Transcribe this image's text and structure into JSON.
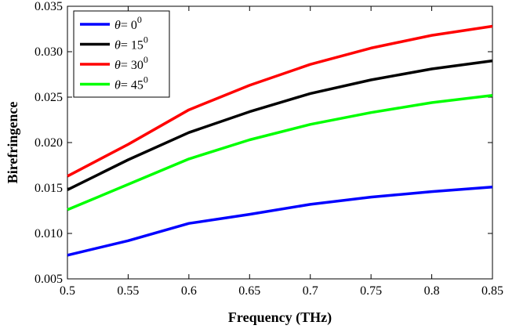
{
  "chart_data": {
    "type": "line",
    "title": "",
    "xlabel": "Frequency (THz)",
    "ylabel": "Birefringence",
    "xlim": [
      0.5,
      0.85
    ],
    "ylim": [
      0.005,
      0.035
    ],
    "xticks": [
      "0.5",
      "0.55",
      "0.6",
      "0.65",
      "0.7",
      "0.75",
      "0.8",
      "0.85"
    ],
    "yticks": [
      "0.005",
      "0.010",
      "0.015",
      "0.020",
      "0.025",
      "0.030",
      "0.035"
    ],
    "x": [
      0.5,
      0.55,
      0.6,
      0.65,
      0.7,
      0.75,
      0.8,
      0.85
    ],
    "grid": false,
    "legend_position": "top-left",
    "series": [
      {
        "symbol": "θ",
        "label_main": "= 0",
        "label_sup": "0",
        "color": "#0000ff",
        "values": [
          0.0076,
          0.0092,
          0.0111,
          0.0121,
          0.0132,
          0.014,
          0.0146,
          0.0151
        ]
      },
      {
        "symbol": "θ",
        "label_main": "= 15",
        "label_sup": "0",
        "color": "#000000",
        "values": [
          0.0148,
          0.0181,
          0.0211,
          0.0234,
          0.0254,
          0.0269,
          0.0281,
          0.029
        ]
      },
      {
        "symbol": "θ",
        "label_main": "= 30",
        "label_sup": "0",
        "color": "#ff0000",
        "values": [
          0.0163,
          0.0198,
          0.0236,
          0.0263,
          0.0286,
          0.0304,
          0.0318,
          0.0328
        ]
      },
      {
        "symbol": "θ",
        "label_main": "= 45",
        "label_sup": "0",
        "color": "#00ff00",
        "values": [
          0.0126,
          0.0154,
          0.0182,
          0.0203,
          0.022,
          0.0233,
          0.0244,
          0.0252
        ]
      }
    ]
  }
}
